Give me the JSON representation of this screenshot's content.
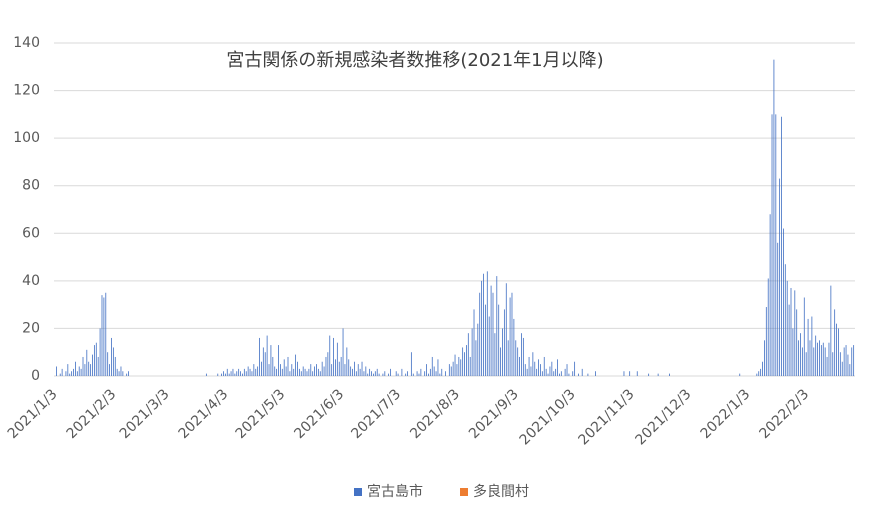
{
  "chart_data": {
    "type": "bar",
    "title": "宮古関係の新規感染者数推移(2021年1月以降)",
    "legend": "bottom",
    "grid": true,
    "ylim": [
      0,
      140
    ],
    "yticks": [
      0,
      20,
      40,
      60,
      80,
      100,
      120,
      140
    ],
    "categories": [
      "2021/1/3",
      null,
      null,
      null,
      null,
      null,
      null,
      null,
      null,
      null,
      null,
      null,
      null,
      null,
      null,
      null,
      null,
      null,
      null,
      null,
      null,
      null,
      null,
      null,
      null,
      null,
      null,
      null,
      null,
      null,
      null,
      "2021/2/3",
      null,
      null,
      null,
      null,
      null,
      null,
      null,
      null,
      null,
      null,
      null,
      null,
      null,
      null,
      null,
      null,
      null,
      null,
      null,
      null,
      null,
      null,
      null,
      null,
      null,
      null,
      null,
      "2021/3/3",
      null,
      null,
      null,
      null,
      null,
      null,
      null,
      null,
      null,
      null,
      null,
      null,
      null,
      null,
      null,
      null,
      null,
      null,
      null,
      null,
      null,
      null,
      null,
      null,
      null,
      null,
      null,
      null,
      null,
      null,
      "2021/4/3",
      null,
      null,
      null,
      null,
      null,
      null,
      null,
      null,
      null,
      null,
      null,
      null,
      null,
      null,
      null,
      null,
      null,
      null,
      null,
      null,
      null,
      null,
      null,
      null,
      null,
      null,
      null,
      null,
      null,
      "2021/5/3",
      null,
      null,
      null,
      null,
      null,
      null,
      null,
      null,
      null,
      null,
      null,
      null,
      null,
      null,
      null,
      null,
      null,
      null,
      null,
      null,
      null,
      null,
      null,
      null,
      null,
      null,
      null,
      null,
      null,
      null,
      "2021/6/3",
      null,
      null,
      null,
      null,
      null,
      null,
      null,
      null,
      null,
      null,
      null,
      null,
      null,
      null,
      null,
      null,
      null,
      null,
      null,
      null,
      null,
      null,
      null,
      null,
      null,
      null,
      null,
      null,
      null,
      "2021/7/3",
      null,
      null,
      null,
      null,
      null,
      null,
      null,
      null,
      null,
      null,
      null,
      null,
      null,
      null,
      null,
      null,
      null,
      null,
      null,
      null,
      null,
      null,
      null,
      null,
      null,
      null,
      null,
      null,
      null,
      null,
      "2021/8/3",
      null,
      null,
      null,
      null,
      null,
      null,
      null,
      null,
      null,
      null,
      null,
      null,
      null,
      null,
      null,
      null,
      null,
      null,
      null,
      null,
      null,
      null,
      null,
      null,
      null,
      null,
      null,
      null,
      null,
      null,
      "2021/9/3",
      null,
      null,
      null,
      null,
      null,
      null,
      null,
      null,
      null,
      null,
      null,
      null,
      null,
      null,
      null,
      null,
      null,
      null,
      null,
      null,
      null,
      null,
      null,
      null,
      null,
      null,
      null,
      null,
      null,
      "2021/10/3",
      null,
      null,
      null,
      null,
      null,
      null,
      null,
      null,
      null,
      null,
      null,
      null,
      null,
      null,
      null,
      null,
      null,
      null,
      null,
      null,
      null,
      null,
      null,
      null,
      null,
      null,
      null,
      null,
      null,
      null,
      "2021/11/3",
      null,
      null,
      null,
      null,
      null,
      null,
      null,
      null,
      null,
      null,
      null,
      null,
      null,
      null,
      null,
      null,
      null,
      null,
      null,
      null,
      null,
      null,
      null,
      null,
      null,
      null,
      null,
      null,
      null,
      "2021/12/3",
      null,
      null,
      null,
      null,
      null,
      null,
      null,
      null,
      null,
      null,
      null,
      null,
      null,
      null,
      null,
      null,
      null,
      null,
      null,
      null,
      null,
      null,
      null,
      null,
      null,
      null,
      null,
      null,
      null,
      null,
      "2022/1/3",
      null,
      null,
      null,
      null,
      null,
      null,
      null,
      null,
      null,
      null,
      null,
      null,
      null,
      null,
      null,
      null,
      null,
      null,
      null,
      null,
      null,
      null,
      null,
      null,
      null,
      null,
      null,
      null,
      null,
      null,
      "2022/2/3",
      null,
      null,
      null,
      null,
      null,
      null,
      null,
      null,
      null,
      null,
      null,
      null,
      null,
      null,
      null,
      null,
      null,
      null,
      null,
      null,
      null,
      null,
      null,
      null,
      null
    ],
    "series": [
      {
        "name": "宮古島市",
        "color": "#4472c4",
        "values": [
          0,
          4,
          0,
          1,
          3,
          0,
          2,
          5,
          1,
          2,
          3,
          6,
          2,
          4,
          3,
          8,
          5,
          11,
          6,
          5,
          9,
          13,
          14,
          8,
          20,
          34,
          33,
          35,
          10,
          5,
          16,
          12,
          8,
          3,
          2,
          4,
          2,
          0,
          1,
          2,
          0,
          0,
          0,
          0,
          0,
          0,
          0,
          0,
          0,
          0,
          0,
          0,
          0,
          0,
          0,
          0,
          0,
          0,
          0,
          0,
          0,
          0,
          0,
          0,
          0,
          0,
          0,
          0,
          0,
          0,
          0,
          0,
          0,
          0,
          0,
          0,
          0,
          0,
          0,
          0,
          1,
          0,
          0,
          0,
          0,
          0,
          1,
          0,
          1,
          2,
          1,
          3,
          1,
          2,
          3,
          1,
          2,
          3,
          2,
          1,
          3,
          2,
          4,
          3,
          2,
          5,
          3,
          4,
          16,
          6,
          12,
          10,
          17,
          5,
          13,
          8,
          4,
          3,
          13,
          5,
          3,
          7,
          4,
          8,
          2,
          5,
          3,
          9,
          6,
          3,
          2,
          4,
          3,
          2,
          3,
          5,
          2,
          4,
          5,
          3,
          2,
          6,
          4,
          8,
          10,
          17,
          5,
          16,
          7,
          14,
          6,
          8,
          20,
          5,
          12,
          7,
          4,
          3,
          6,
          2,
          5,
          3,
          6,
          2,
          4,
          1,
          3,
          2,
          1,
          2,
          3,
          1,
          0,
          1,
          2,
          0,
          1,
          3,
          0,
          0,
          2,
          1,
          0,
          3,
          0,
          1,
          2,
          0,
          10,
          1,
          0,
          2,
          1,
          3,
          0,
          2,
          5,
          1,
          3,
          8,
          4,
          2,
          7,
          1,
          3,
          0,
          2,
          0,
          5,
          4,
          6,
          9,
          5,
          8,
          7,
          12,
          10,
          13,
          18,
          8,
          20,
          28,
          15,
          22,
          35,
          40,
          43,
          30,
          44,
          25,
          38,
          35,
          18,
          42,
          30,
          12,
          20,
          28,
          39,
          15,
          33,
          35,
          24,
          15,
          12,
          8,
          18,
          16,
          5,
          3,
          8,
          4,
          10,
          6,
          3,
          7,
          5,
          2,
          8,
          3,
          1,
          4,
          6,
          2,
          3,
          7,
          1,
          2,
          0,
          3,
          5,
          1,
          0,
          2,
          6,
          0,
          1,
          0,
          3,
          0,
          0,
          1,
          0,
          0,
          0,
          2,
          0,
          0,
          0,
          0,
          0,
          0,
          0,
          0,
          0,
          0,
          0,
          0,
          0,
          0,
          2,
          0,
          0,
          2,
          0,
          0,
          0,
          2,
          0,
          0,
          0,
          0,
          0,
          1,
          0,
          0,
          0,
          0,
          1,
          0,
          0,
          0,
          0,
          0,
          1,
          0,
          0,
          0,
          0,
          0,
          0,
          0,
          0,
          0,
          0,
          0,
          0,
          0,
          0,
          0,
          0,
          0,
          0,
          0,
          0,
          0,
          0,
          0,
          0,
          0,
          0,
          0,
          0,
          0,
          0,
          0,
          0,
          0,
          0,
          0,
          0,
          1,
          0,
          0,
          0,
          0,
          0,
          0,
          0,
          0,
          1,
          2,
          3,
          6,
          15,
          29,
          41,
          68,
          110,
          133,
          110,
          56,
          83,
          109,
          62,
          47,
          40,
          30,
          37,
          20,
          36,
          28,
          15,
          18,
          12,
          33,
          10,
          24,
          15,
          25,
          12,
          17,
          14,
          15,
          13,
          14,
          12,
          8,
          14,
          38,
          10,
          28,
          22,
          20,
          10,
          6,
          12,
          13,
          9,
          5,
          12,
          13
        ]
      },
      {
        "name": "多良間村",
        "color": "#ed7d31",
        "values": [
          0,
          0,
          0,
          0,
          0,
          0,
          0,
          0,
          0,
          0,
          0,
          0,
          0,
          0,
          0,
          0,
          0,
          0,
          0,
          0,
          0,
          0,
          0,
          0,
          0,
          0,
          0,
          0,
          0,
          0,
          0,
          0,
          0,
          0,
          0,
          0,
          0,
          0,
          0,
          0,
          0,
          0,
          0,
          0,
          0,
          0,
          0,
          0,
          0,
          0,
          0,
          0,
          0,
          0,
          0,
          0,
          0,
          0,
          0,
          0,
          0,
          0,
          0,
          0,
          0,
          0,
          0,
          0,
          0,
          0,
          0,
          0,
          0,
          0,
          0,
          0,
          0,
          0,
          0,
          0,
          0,
          0,
          0,
          0,
          0,
          0,
          0,
          0,
          0,
          0,
          0,
          0,
          0,
          0,
          0,
          0,
          0,
          0,
          0,
          0,
          0,
          0,
          0,
          0,
          0,
          0,
          0,
          0,
          0,
          0,
          0,
          0,
          0,
          0,
          0,
          0,
          0,
          0,
          0,
          0,
          0,
          0,
          0,
          0,
          0,
          0,
          0,
          0,
          0,
          0,
          0,
          0,
          0,
          0,
          0,
          0,
          0,
          0,
          0,
          0,
          0,
          0,
          0,
          0,
          0,
          0,
          0,
          0,
          0,
          0,
          0,
          0,
          0,
          0,
          0,
          0,
          0,
          0,
          0,
          0,
          0,
          0,
          0,
          0,
          0,
          0,
          0,
          0,
          0,
          0,
          0,
          0,
          0,
          0,
          0,
          0,
          0,
          0,
          0,
          0,
          0,
          0,
          0,
          0,
          0,
          0,
          0,
          0,
          0,
          0,
          0,
          0,
          0,
          0,
          0,
          0,
          0,
          0,
          0,
          0,
          0,
          0,
          0,
          0,
          0,
          0,
          0,
          0,
          0,
          0,
          0,
          0,
          0,
          0,
          0,
          0,
          0,
          0,
          0,
          0,
          0,
          0,
          0,
          0,
          0,
          0,
          0,
          0,
          0,
          0,
          0,
          0,
          0,
          0,
          0,
          0,
          0,
          0,
          0,
          0,
          0,
          0,
          0,
          0,
          0,
          0,
          0,
          0,
          0,
          0,
          0,
          0,
          0,
          0,
          0,
          0,
          0,
          0,
          0,
          0,
          0,
          0,
          0,
          0,
          0,
          0,
          0,
          0,
          0,
          0,
          0,
          0,
          0,
          0,
          0,
          0,
          0,
          0,
          0,
          0,
          0,
          0,
          0,
          0,
          0,
          0,
          0,
          0,
          0,
          0,
          0,
          0,
          0,
          0,
          0,
          0,
          0,
          0,
          0,
          0,
          0,
          0,
          0,
          0,
          0,
          0,
          0,
          0,
          0,
          0,
          0,
          0,
          0,
          0,
          0,
          0,
          0,
          0,
          0,
          0,
          0,
          0,
          0,
          0,
          0,
          0,
          0,
          0,
          0,
          0,
          0,
          0,
          0,
          0,
          0,
          0,
          0,
          0,
          0,
          0,
          0,
          0,
          0,
          0,
          0,
          0,
          0,
          0,
          0,
          0,
          0,
          0,
          0,
          0,
          0,
          0,
          0,
          0,
          0,
          0,
          0,
          0,
          0,
          0,
          0,
          0,
          0,
          0,
          0,
          0,
          0,
          0,
          0,
          0,
          0,
          0,
          0,
          0,
          0,
          0,
          0,
          0,
          0,
          0,
          0,
          0,
          0,
          0,
          0,
          0,
          0,
          0,
          0,
          0,
          0,
          0,
          0,
          0,
          0,
          0,
          0,
          0,
          0,
          0,
          0,
          0,
          0,
          0,
          0,
          0,
          0,
          0,
          0,
          0,
          0,
          0,
          0,
          0,
          0,
          0,
          0,
          0
        ]
      }
    ]
  }
}
